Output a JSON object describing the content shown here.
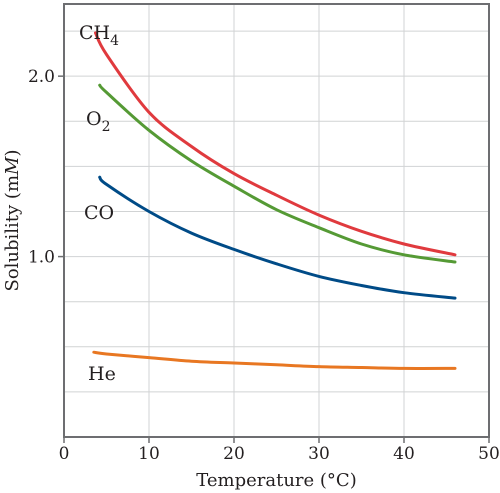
{
  "chart_data": {
    "type": "line",
    "xlabel": "Temperature (°C)",
    "ylabel_prefix": "Solubility (m",
    "ylabel_italic": "M",
    "ylabel_suffix": ")",
    "xlim": [
      0,
      50
    ],
    "ylim": [
      0,
      2.4
    ],
    "grid": true,
    "x_ticks": [
      0,
      10,
      20,
      30,
      40,
      50
    ],
    "x_tick_labels": [
      "0",
      "10",
      "20",
      "30",
      "40",
      "50"
    ],
    "y_ticks": [
      1.0,
      2.0
    ],
    "y_tick_labels": [
      "1.0",
      "2.0"
    ],
    "y_gridlines": [
      0.25,
      0.5,
      0.75,
      1.0,
      1.25,
      1.5,
      1.75,
      2.0,
      2.25
    ],
    "series": [
      {
        "name": "CH4",
        "label_main": "CH",
        "label_sub": "4",
        "color": "#e03a3e",
        "x": [
          3.7,
          5,
          10,
          15,
          20,
          25,
          30,
          35,
          40,
          46
        ],
        "y": [
          2.24,
          2.12,
          1.8,
          1.61,
          1.46,
          1.34,
          1.23,
          1.14,
          1.07,
          1.01
        ]
      },
      {
        "name": "O2",
        "label_main": "O",
        "label_sub": "2",
        "color": "#559a35",
        "x": [
          4.2,
          5,
          10,
          15,
          20,
          25,
          30,
          35,
          40,
          46
        ],
        "y": [
          1.95,
          1.91,
          1.7,
          1.53,
          1.39,
          1.26,
          1.16,
          1.07,
          1.01,
          0.97
        ]
      },
      {
        "name": "CO",
        "label_main": "CO",
        "label_sub": "",
        "color": "#004b87",
        "x": [
          4.2,
          5,
          10,
          15,
          20,
          25,
          30,
          35,
          40,
          46
        ],
        "y": [
          1.44,
          1.4,
          1.25,
          1.13,
          1.04,
          0.96,
          0.89,
          0.84,
          0.8,
          0.77
        ]
      },
      {
        "name": "He",
        "label_main": "He",
        "label_sub": "",
        "color": "#e87722",
        "x": [
          3.5,
          5,
          10,
          15,
          20,
          25,
          30,
          35,
          40,
          46
        ],
        "y": [
          0.47,
          0.46,
          0.44,
          0.42,
          0.41,
          0.4,
          0.39,
          0.385,
          0.38,
          0.38
        ]
      }
    ]
  }
}
